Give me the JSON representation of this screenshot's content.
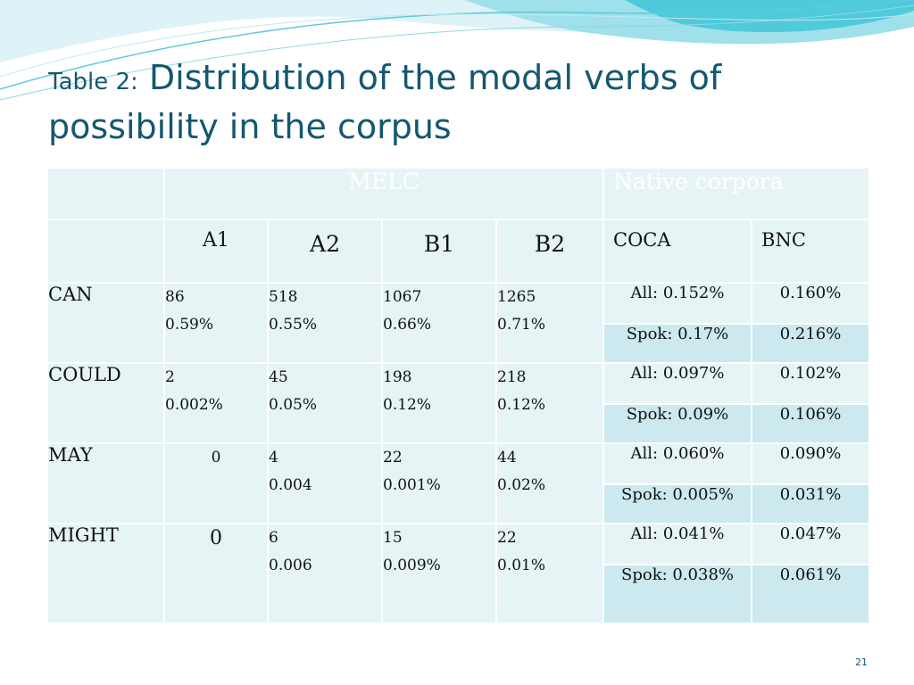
{
  "slide": {
    "title_prefix": "Table 2:",
    "title_main": "Distribution of the modal verbs of possibility in the corpus",
    "page_number": "21",
    "theme_colors": {
      "header": "#0ccbdb",
      "band": "#cbe9ee",
      "body": "#e6f4f6",
      "title": "#14586f"
    }
  },
  "table": {
    "header": {
      "corner": "",
      "melc": "MELC",
      "native": "Native corpora"
    },
    "subheader": {
      "corner": "",
      "a1": "A1",
      "a2": "A2",
      "b1": "B1",
      "b2": "B2",
      "coca": "COCA",
      "bnc": "BNC"
    },
    "rows": [
      {
        "label": "CAN",
        "a1": [
          "86",
          "0.59%"
        ],
        "a2": [
          "518",
          "0.55%"
        ],
        "b1": [
          "1067",
          "0.66%"
        ],
        "b2": [
          "1265",
          "0.71%"
        ],
        "coca_all": "All: 0.152%",
        "bnc_all": "0.160%",
        "coca_spok": "Spok: 0.17%",
        "bnc_spok": "0.216%"
      },
      {
        "label": "COULD",
        "a1": [
          "2",
          "0.002%"
        ],
        "a2": [
          "45",
          "0.05%"
        ],
        "b1": [
          "198",
          "0.12%"
        ],
        "b2": [
          "218",
          "0.12%"
        ],
        "coca_all": "All: 0.097%",
        "bnc_all": "0.102%",
        "coca_spok": "Spok: 0.09%",
        "bnc_spok": "0.106%"
      },
      {
        "label": "MAY",
        "a1": [
          "0"
        ],
        "a2": [
          "4",
          "0.004"
        ],
        "b1": [
          "22",
          "0.001%"
        ],
        "b2": [
          "44",
          "0.02%"
        ],
        "coca_all": "All: 0.060%",
        "bnc_all": "0.090%",
        "coca_spok": "Spok: 0.005%",
        "bnc_spok": "0.031%"
      },
      {
        "label": "MIGHT",
        "a1": [
          "0"
        ],
        "a2": [
          "6",
          "0.006"
        ],
        "b1": [
          "15",
          "0.009%"
        ],
        "b2": [
          "22",
          "0.01%"
        ],
        "coca_all": "All: 0.041%",
        "bnc_all": "0.047%",
        "coca_spok": "Spok: 0.038%",
        "bnc_spok": "0.061%"
      }
    ]
  }
}
